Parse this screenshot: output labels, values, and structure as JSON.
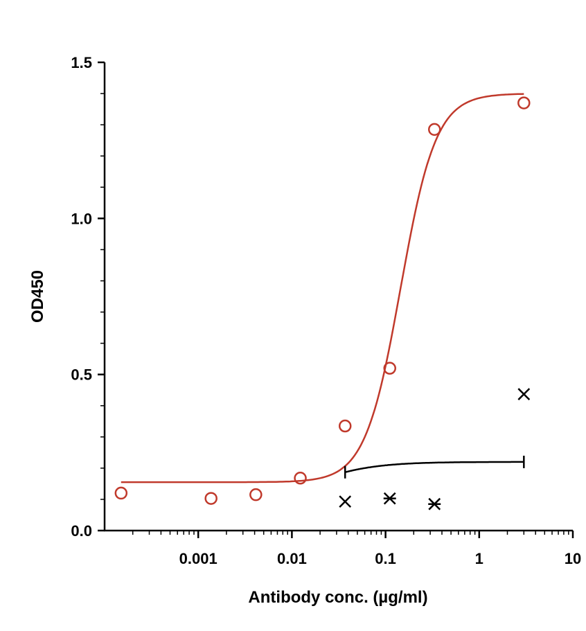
{
  "chart_data": {
    "type": "scatter",
    "title": "",
    "xlabel": "Antibody conc. (µg/ml)",
    "ylabel": "OD450",
    "xscale": "log",
    "xlim": [
      0.0001,
      10
    ],
    "ylim": [
      0,
      1.5
    ],
    "xticks": [
      {
        "value": 0.001,
        "label": "0.001"
      },
      {
        "value": 0.01,
        "label": "0.01"
      },
      {
        "value": 0.1,
        "label": "0.1"
      },
      {
        "value": 1,
        "label": "1"
      },
      {
        "value": 10,
        "label": "10"
      }
    ],
    "yticks": [
      {
        "value": 0,
        "label": "0.0"
      },
      {
        "value": 0.5,
        "label": "0.5"
      },
      {
        "value": 1.0,
        "label": "1.0"
      },
      {
        "value": 1.5,
        "label": "1.5"
      }
    ],
    "grid": false,
    "legend": "none",
    "series": [
      {
        "marker": "open-circle",
        "color": "#c0392b",
        "x": [
          0.00015,
          0.00137,
          0.00412,
          0.0123,
          0.037,
          0.111,
          0.333,
          3.0
        ],
        "y": [
          0.12,
          0.103,
          0.115,
          0.168,
          0.335,
          0.52,
          1.285,
          1.37
        ],
        "fit": {
          "bottom": 0.155,
          "top": 1.4,
          "ec50": 0.145,
          "hill": 2.3,
          "x_range": [
            0.00015,
            3.0
          ]
        }
      },
      {
        "marker": "x",
        "color": "#000000",
        "x": [
          0.037,
          0.111,
          0.333,
          3.0
        ],
        "y": [
          0.093,
          0.103,
          0.085,
          0.437
        ]
      },
      {
        "marker": "asterisk",
        "color": "#000000",
        "x": [
          0.111,
          0.333
        ],
        "y": [
          0.103,
          0.085
        ],
        "fit": {
          "bottom": 0.08,
          "top": 0.22,
          "ec50": 0.015,
          "hill": 1.3,
          "x_range": [
            0.037,
            3.0
          ]
        }
      }
    ]
  }
}
